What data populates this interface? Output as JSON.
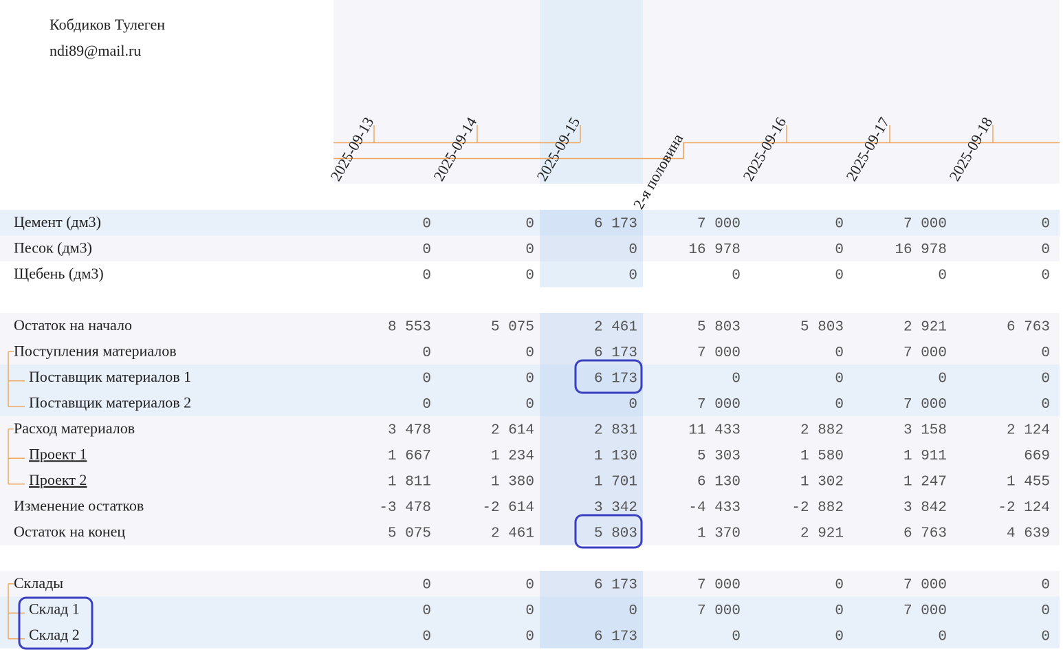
{
  "header": {
    "name": "Кобдиков Тулеген",
    "email": "ndi89@mail.ru"
  },
  "timeline": [
    "2025-09-13",
    "2025-09-14",
    "2025-09-15",
    "2-я половина",
    "2025-09-16",
    "2025-09-17",
    "2025-09-18"
  ],
  "sections": [
    {
      "rows": [
        {
          "label": "Цемент (дм3)",
          "values": [
            "0",
            "0",
            "6 173",
            "7 000",
            "0",
            "7 000",
            "0"
          ]
        },
        {
          "label": "Песок (дм3)",
          "values": [
            "0",
            "0",
            "0",
            "16 978",
            "0",
            "16 978",
            "0"
          ]
        },
        {
          "label": "Щебень (дм3)",
          "values": [
            "0",
            "0",
            "0",
            "0",
            "0",
            "0",
            "0"
          ]
        }
      ]
    },
    {
      "rows": [
        {
          "label": "Остаток на начало",
          "values": [
            "8 553",
            "5 075",
            "2 461",
            "5 803",
            "5 803",
            "2 921",
            "6 763"
          ]
        },
        {
          "label": "Поступления материалов",
          "values": [
            "0",
            "0",
            "6 173",
            "7 000",
            "0",
            "7 000",
            "0"
          ],
          "children": [
            {
              "label": "Поставщик материалов 1",
              "values": [
                "0",
                "0",
                "6 173",
                "0",
                "0",
                "0",
                "0"
              ]
            },
            {
              "label": "Поставщик материалов 2",
              "values": [
                "0",
                "0",
                "0",
                "7 000",
                "0",
                "7 000",
                "0"
              ]
            }
          ]
        },
        {
          "label": "Расход материалов",
          "values": [
            "3 478",
            "2 614",
            "2 831",
            "11 433",
            "2 882",
            "3 158",
            "2 124"
          ],
          "children": [
            {
              "label": "Проект 1",
              "link": true,
              "values": [
                "1 667",
                "1 234",
                "1 130",
                "5 303",
                "1 580",
                "1 911",
                "669"
              ]
            },
            {
              "label": "Проект 2",
              "link": true,
              "values": [
                "1 811",
                "1 380",
                "1 701",
                "6 130",
                "1 302",
                "1 247",
                "1 455"
              ]
            }
          ]
        },
        {
          "label": "Изменение остатков",
          "values": [
            "-3 478",
            "-2 614",
            "3 342",
            "-4 433",
            "-2 882",
            "3 842",
            "-2 124"
          ]
        },
        {
          "label": "Остаток на конец",
          "values": [
            "5 075",
            "2 461",
            "5 803",
            "1 370",
            "2 921",
            "6 763",
            "4 639"
          ]
        }
      ]
    },
    {
      "rows": [
        {
          "label": "Склады",
          "values": [
            "0",
            "0",
            "6 173",
            "7 000",
            "0",
            "7 000",
            "0"
          ],
          "children": [
            {
              "label": "Склад 1",
              "values": [
                "0",
                "0",
                "0",
                "7 000",
                "0",
                "7 000",
                "0"
              ]
            },
            {
              "label": "Склад 2",
              "values": [
                "0",
                "0",
                "6 173",
                "0",
                "0",
                "0",
                "0"
              ]
            }
          ]
        }
      ]
    }
  ]
}
